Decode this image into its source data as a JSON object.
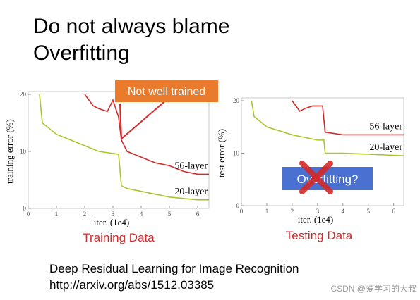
{
  "slide": {
    "title_lines": [
      "Do not always blame",
      "Overfitting"
    ],
    "captions": [
      "Training Data",
      "Testing Data"
    ],
    "reference": [
      "Deep Residual Learning for Image Recognition",
      "http://arxiv.org/abs/1512.03385"
    ],
    "watermark": "CSDN @爱学习的大叔"
  },
  "chart_data": [
    {
      "type": "line",
      "x_label": "iter. (1e4)",
      "y_label": "training error (%)",
      "annotation": "Not well trained",
      "xlim": [
        0,
        6.4
      ],
      "ylim": [
        0,
        20
      ],
      "xticks": [
        0,
        1,
        2,
        3,
        4,
        5,
        6
      ],
      "yticks": [
        0,
        10,
        20
      ],
      "series": [
        {
          "name": "56-layer",
          "color": "#d42a2a",
          "x": [
            2.0,
            2.3,
            2.5,
            2.8,
            3.0,
            3.2,
            3.3,
            3.5,
            4.0,
            4.5,
            5.0,
            5.5,
            6.0,
            6.4
          ],
          "values": [
            20,
            18,
            17.5,
            17,
            19,
            16,
            12,
            10,
            9,
            8,
            7.5,
            6.5,
            6,
            6
          ]
        },
        {
          "name": "20-layer",
          "color": "#a9c62a",
          "x": [
            0.4,
            0.5,
            1.0,
            1.5,
            2.0,
            2.5,
            3.2,
            3.3,
            3.5,
            4.0,
            5.0,
            6.0,
            6.4
          ],
          "values": [
            20,
            15,
            13,
            12,
            11,
            10,
            9.5,
            4,
            3.5,
            3,
            2,
            1.5,
            1.5
          ]
        }
      ]
    },
    {
      "type": "line",
      "x_label": "iter. (1e4)",
      "y_label": "test error (%)",
      "annotation": "Overfitting?",
      "xlim": [
        0,
        6.4
      ],
      "ylim": [
        0,
        20
      ],
      "xticks": [
        0,
        1,
        2,
        3,
        4,
        5,
        6
      ],
      "yticks": [
        0,
        10,
        20
      ],
      "series": [
        {
          "name": "56-layer",
          "color": "#d42a2a",
          "x": [
            2.0,
            2.3,
            2.5,
            2.8,
            3.0,
            3.2,
            3.3,
            4.0,
            5.0,
            6.4
          ],
          "values": [
            20,
            18,
            18.5,
            19,
            19,
            19,
            14,
            13.5,
            13.5,
            13.5
          ]
        },
        {
          "name": "20-layer",
          "color": "#a9c62a",
          "x": [
            0.4,
            0.5,
            1.0,
            2.0,
            3.0,
            3.25,
            3.3,
            4.0,
            5.0,
            6.4
          ],
          "values": [
            20,
            17,
            15,
            13.5,
            12.5,
            12.5,
            10,
            10,
            9.8,
            9.5
          ]
        }
      ]
    }
  ]
}
